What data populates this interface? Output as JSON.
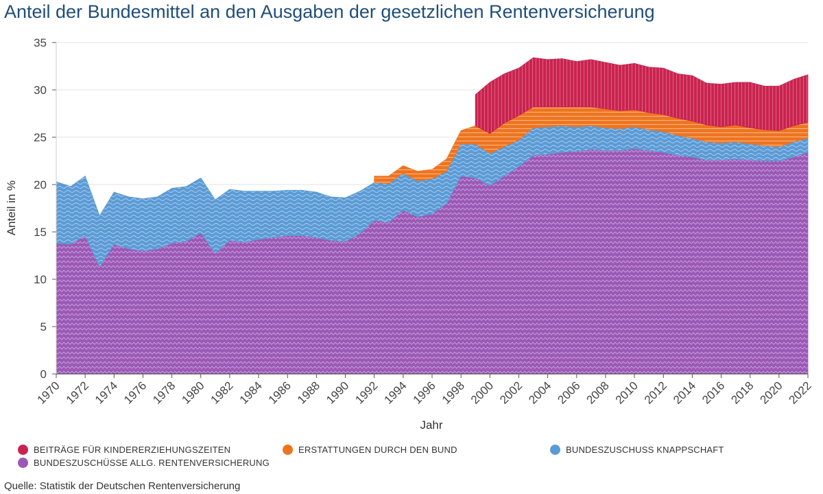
{
  "title": "Anteil der Bundesmittel an den Ausgaben der gesetzlichen Rentenversicherung",
  "source": "Quelle: Statistik der Deutschen Rentenversicherung",
  "legend": [
    {
      "label": "BEITRÄGE FÜR KINDERERZIEHUNGSZEITEN",
      "color": "#c8234f"
    },
    {
      "label": "ERSTATTUNGEN DURCH DEN BUND",
      "color": "#ee7420"
    },
    {
      "label": "BUNDESZUSCHUSS KNAPPSCHAFT",
      "color": "#5b9bd5"
    },
    {
      "label": "BUNDESZUSCHÜSSE ALLG. RENTENVERSICHERUNG",
      "color": "#9b59b6"
    }
  ],
  "chart_data": {
    "type": "area",
    "stacked": true,
    "title": "Anteil der Bundesmittel an den Ausgaben der gesetzlichen Rentenversicherung",
    "xlabel": "Jahr",
    "ylabel": "Anteil in %",
    "xlim": [
      1970,
      2022
    ],
    "ylim": [
      0,
      35
    ],
    "yticks": [
      0,
      5,
      10,
      15,
      20,
      25,
      30,
      35
    ],
    "xticks": [
      1970,
      1972,
      1974,
      1976,
      1978,
      1980,
      1982,
      1984,
      1986,
      1988,
      1990,
      1992,
      1994,
      1996,
      1998,
      2000,
      2002,
      2004,
      2006,
      2008,
      2010,
      2012,
      2014,
      2016,
      2018,
      2020,
      2022
    ],
    "grid": true,
    "x": [
      1970,
      1971,
      1972,
      1973,
      1974,
      1975,
      1976,
      1977,
      1978,
      1979,
      1980,
      1981,
      1982,
      1983,
      1984,
      1985,
      1986,
      1987,
      1988,
      1989,
      1990,
      1991,
      1992,
      1993,
      1994,
      1995,
      1996,
      1997,
      1998,
      1999,
      2000,
      2001,
      2002,
      2003,
      2004,
      2005,
      2006,
      2007,
      2008,
      2009,
      2010,
      2011,
      2012,
      2013,
      2014,
      2015,
      2016,
      2017,
      2018,
      2019,
      2020,
      2021,
      2022
    ],
    "series": [
      {
        "name": "BUNDESZUSCHÜSSE ALLG. RENTENVERSICHERUNG",
        "color": "#9b59b6",
        "values": [
          13.8,
          13.7,
          14.6,
          11.3,
          13.7,
          13.2,
          13.0,
          13.2,
          13.8,
          14.0,
          14.9,
          12.7,
          14.1,
          13.9,
          14.2,
          14.4,
          14.6,
          14.6,
          14.4,
          14.1,
          14.0,
          14.8,
          16.2,
          16.0,
          17.3,
          16.6,
          16.9,
          18.0,
          20.9,
          20.7,
          19.9,
          20.9,
          21.9,
          23.1,
          23.2,
          23.4,
          23.5,
          23.7,
          23.6,
          23.6,
          23.8,
          23.6,
          23.4,
          23.1,
          22.9,
          22.6,
          22.6,
          22.7,
          22.6,
          22.5,
          22.5,
          22.9,
          23.4
        ]
      },
      {
        "name": "BUNDESZUSCHUSS KNAPPSCHAFT",
        "color": "#5b9bd5",
        "values": [
          6.5,
          6.1,
          6.3,
          5.4,
          5.5,
          5.5,
          5.5,
          5.5,
          5.8,
          5.8,
          5.8,
          5.7,
          5.4,
          5.4,
          5.1,
          4.9,
          4.8,
          4.8,
          4.8,
          4.6,
          4.6,
          4.5,
          4.0,
          4.1,
          3.9,
          3.8,
          3.7,
          3.4,
          3.4,
          3.6,
          3.4,
          3.1,
          2.8,
          2.9,
          2.9,
          2.8,
          2.6,
          2.5,
          2.4,
          2.3,
          2.3,
          2.2,
          2.2,
          2.1,
          2.0,
          1.9,
          1.8,
          1.8,
          1.7,
          1.6,
          1.5,
          1.6,
          1.5
        ]
      },
      {
        "name": "ERSTATTUNGEN DURCH DEN BUND",
        "color": "#ee7420",
        "values": [
          0,
          0,
          0,
          0,
          0,
          0,
          0,
          0,
          0,
          0,
          0,
          0,
          0,
          0,
          0,
          0,
          0,
          0,
          0,
          0,
          0,
          0,
          0.7,
          0.8,
          0.8,
          1.0,
          1.0,
          1.3,
          1.4,
          1.9,
          2.1,
          2.5,
          2.6,
          2.2,
          2.1,
          2.0,
          2.1,
          2.0,
          2.0,
          1.9,
          1.8,
          1.8,
          1.8,
          1.8,
          1.8,
          1.8,
          1.7,
          1.8,
          1.7,
          1.7,
          1.7,
          1.7,
          1.7
        ]
      },
      {
        "name": "BEITRÄGE FÜR KINDERERZIEHUNGSZEITEN",
        "color": "#c8234f",
        "values": [
          0,
          0,
          0,
          0,
          0,
          0,
          0,
          0,
          0,
          0,
          0,
          0,
          0,
          0,
          0,
          0,
          0,
          0,
          0,
          0,
          0,
          0,
          0,
          0,
          0,
          0,
          0,
          0,
          0,
          3.3,
          5.4,
          5.2,
          5.0,
          5.2,
          5.0,
          5.1,
          4.8,
          5.0,
          4.9,
          4.8,
          4.9,
          4.8,
          4.9,
          4.7,
          4.8,
          4.4,
          4.5,
          4.5,
          4.8,
          4.6,
          4.7,
          4.9,
          5.0
        ]
      }
    ]
  }
}
